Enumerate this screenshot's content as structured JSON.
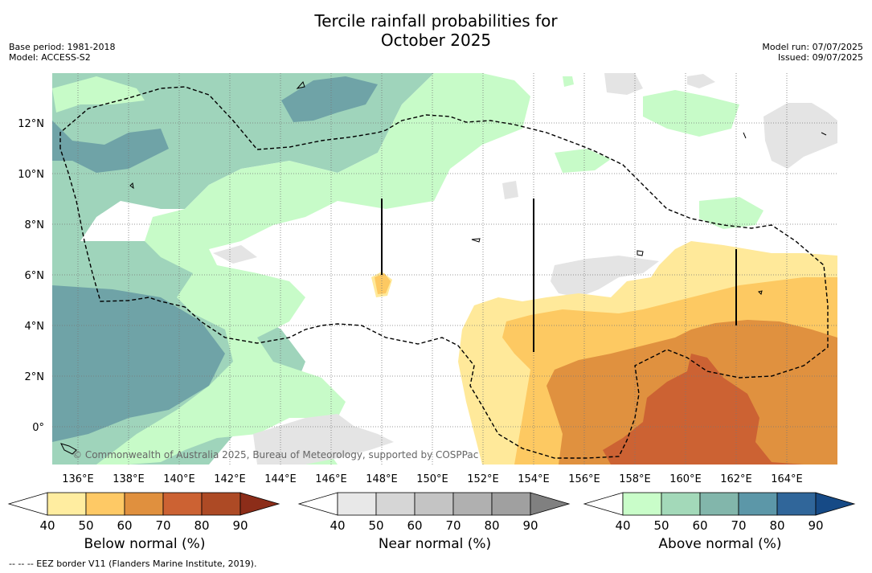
{
  "title_line1": "Tercile rainfall probabilities for",
  "title_line2": "October 2025",
  "meta_left": [
    "Base period: 1981-2018",
    "Model: ACCESS-S2"
  ],
  "meta_right": [
    "Model run: 07/07/2025",
    "Issued: 09/07/2025"
  ],
  "map": {
    "lon_labels": [
      "136°E",
      "138°E",
      "140°E",
      "142°E",
      "144°E",
      "146°E",
      "148°E",
      "150°E",
      "152°E",
      "154°E",
      "156°E",
      "158°E",
      "160°E",
      "162°E",
      "164°E"
    ],
    "lat_labels": [
      "12°N",
      "10°N",
      "8°N",
      "6°N",
      "4°N",
      "2°N",
      "0°"
    ],
    "attribution": "© Commonwealth of Australia 2025, Bureau of Meteorology, supported by COSPPac"
  },
  "colorbars": {
    "below": {
      "label": "Below normal (%)",
      "ticks": [
        "40",
        "50",
        "60",
        "70",
        "80",
        "90"
      ],
      "colors": [
        "#ffffff",
        "#ffeda0",
        "#fec965",
        "#e0903e",
        "#cc6233",
        "#ad4a25",
        "#8c2d19"
      ]
    },
    "near": {
      "label": "Near normal (%)",
      "ticks": [
        "40",
        "50",
        "60",
        "70",
        "80",
        "90"
      ],
      "colors": [
        "#ffffff",
        "#e8e8e8",
        "#d6d6d6",
        "#c4c4c4",
        "#b0b0b0",
        "#a0a0a0",
        "#808080"
      ]
    },
    "above": {
      "label": "Above normal (%)",
      "ticks": [
        "40",
        "50",
        "60",
        "70",
        "80",
        "90"
      ],
      "colors": [
        "#ffffff",
        "#c9fdc9",
        "#a3d9b9",
        "#82b6ab",
        "#5c97a8",
        "#30669a",
        "#164a86"
      ]
    }
  },
  "footer": "--  --  -- EEZ border V11 (Flanders Marine Institute, 2019)."
}
